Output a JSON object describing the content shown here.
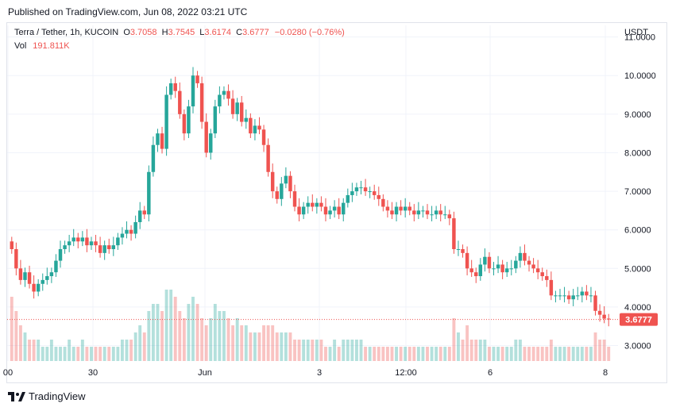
{
  "header": {
    "published": "Published on TradingView.com, Jun 08, 2022 03:21 UTC"
  },
  "legend": {
    "symbol": "Terra / Tether, 1h, KUCOIN",
    "open_label": "O",
    "open": "3.7058",
    "high_label": "H",
    "high": "3.7545",
    "low_label": "L",
    "low": "3.6174",
    "close_label": "C",
    "close": "3.6777",
    "change": "−0.0280 (−0.76%)",
    "vol_label": "Vol",
    "vol": "191.811K"
  },
  "footer": {
    "brand": "TradingView"
  },
  "colors": {
    "up": "#26a69a",
    "down": "#ef5350",
    "grid": "#f0f3fa",
    "text": "#131722",
    "last_price_bg": "#ef5350"
  },
  "chart_data": {
    "type": "candlestick",
    "title": "Terra / Tether, 1h, KUCOIN",
    "currency": "USDT",
    "ylim": [
      2.6,
      11.3
    ],
    "y_ticks": [
      "11.0000",
      "10.0000",
      "9.0000",
      "8.0000",
      "7.0000",
      "6.0000",
      "5.0000",
      "4.0000",
      "3.0000"
    ],
    "x_ticks": [
      "00",
      "30",
      "Jun",
      "3",
      "12:00",
      "6",
      "8"
    ],
    "last_price": "3.6777",
    "close_series": [
      5.5,
      5.0,
      4.7,
      4.9,
      4.6,
      4.4,
      4.6,
      4.7,
      4.8,
      4.9,
      5.2,
      5.5,
      5.6,
      5.7,
      5.8,
      5.7,
      5.8,
      5.6,
      5.7,
      5.6,
      5.4,
      5.6,
      5.5,
      5.6,
      5.8,
      5.9,
      6.0,
      5.9,
      6.2,
      6.5,
      6.4,
      7.5,
      8.2,
      8.5,
      8.1,
      9.5,
      9.8,
      9.6,
      9.0,
      8.5,
      9.2,
      10.0,
      9.8,
      8.8,
      8.0,
      8.5,
      9.2,
      9.5,
      9.6,
      9.4,
      9.0,
      9.3,
      8.8,
      8.9,
      8.5,
      8.7,
      8.6,
      8.2,
      7.5,
      7.0,
      6.8,
      7.2,
      7.4,
      7.0,
      6.6,
      6.4,
      6.6,
      6.7,
      6.6,
      6.7,
      6.6,
      6.4,
      6.5,
      6.6,
      6.4,
      6.7,
      6.9,
      7.0,
      7.1,
      7.1,
      7.0,
      7.0,
      6.9,
      6.8,
      6.6,
      6.5,
      6.4,
      6.6,
      6.5,
      6.6,
      6.5,
      6.4,
      6.5,
      6.5,
      6.4,
      6.4,
      6.5,
      6.4,
      6.4,
      6.3,
      5.5,
      5.5,
      5.4,
      5.0,
      4.9,
      4.8,
      5.1,
      5.3,
      5.0,
      5.0,
      5.1,
      4.9,
      5.0,
      5.0,
      5.2,
      5.4,
      5.2,
      5.1,
      5.0,
      4.9,
      4.8,
      4.7,
      4.3,
      4.3,
      4.3,
      4.3,
      4.2,
      4.3,
      4.3,
      4.4,
      4.3,
      4.3,
      3.9,
      3.8,
      3.7,
      3.68
    ],
    "volume_series": [
      9,
      7,
      5,
      4,
      3,
      3,
      3,
      2,
      2,
      3,
      2,
      2,
      2,
      3,
      2,
      2,
      3,
      2,
      2,
      2,
      2,
      2,
      2,
      2,
      2,
      3,
      3,
      3,
      4,
      5,
      4,
      7,
      8,
      8,
      7,
      10,
      10,
      9,
      7,
      6,
      8,
      9,
      8,
      6,
      5,
      6,
      8,
      7,
      7,
      6,
      5,
      6,
      5,
      5,
      4,
      4,
      4,
      5,
      5,
      5,
      4,
      4,
      4,
      4,
      3,
      3,
      3,
      3,
      3,
      3,
      3,
      2,
      2,
      3,
      2,
      3,
      3,
      3,
      3,
      3,
      2,
      2,
      2,
      2,
      2,
      2,
      2,
      2,
      2,
      2,
      2,
      2,
      2,
      2,
      2,
      2,
      2,
      2,
      2,
      2,
      6,
      4,
      3,
      5,
      3,
      3,
      3,
      3,
      2,
      2,
      2,
      2,
      2,
      2,
      3,
      3,
      2,
      2,
      2,
      2,
      2,
      2,
      3,
      2,
      2,
      2,
      2,
      2,
      2,
      2,
      2,
      2,
      4,
      3,
      3,
      2
    ]
  }
}
